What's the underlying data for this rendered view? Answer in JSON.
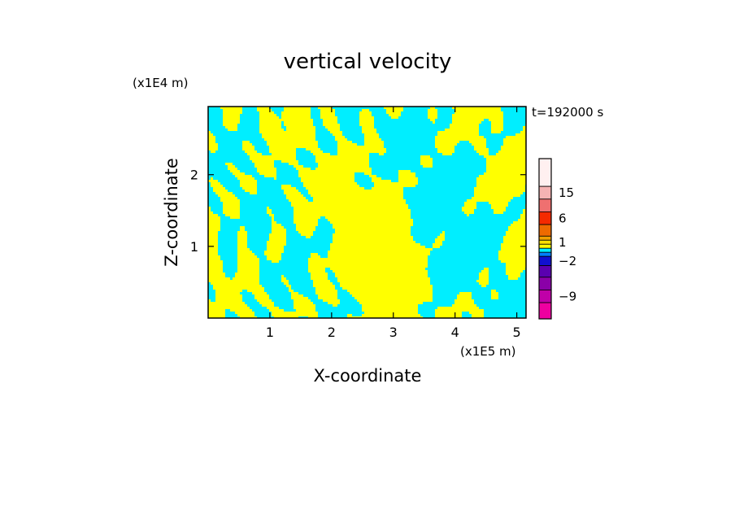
{
  "chart_data": {
    "type": "heatmap",
    "title": "vertical velocity",
    "xlabel": "X-coordinate",
    "ylabel": "Z-coordinate",
    "x_unit": "(x1E5 m)",
    "y_unit": "(x1E4 m)",
    "time_label": "t=192000 s",
    "xlim": [
      0,
      5.15
    ],
    "ylim": [
      0,
      2.95
    ],
    "x_ticks": [
      "1",
      "2",
      "3",
      "4",
      "5"
    ],
    "y_ticks": [
      "1",
      "2"
    ],
    "grid": false,
    "field_colors": {
      "positive": "#ffff00",
      "negative": "#00eeff"
    },
    "colorbar": {
      "tick_labels": [
        "15",
        "6",
        "1",
        "-2",
        "-9"
      ],
      "levels": [
        {
          "value": 24,
          "color": "#fff0f0"
        },
        {
          "value": 15,
          "color": "#f5b3b3"
        },
        {
          "value": 10,
          "color": "#ef7070"
        },
        {
          "value": 6,
          "color": "#f52a00"
        },
        {
          "value": 3,
          "color": "#ee6a00"
        },
        {
          "value": 1.5,
          "color": "#f0a000"
        },
        {
          "value": 1,
          "color": "#ffe000"
        },
        {
          "value": 0.5,
          "color": "#ffff00"
        },
        {
          "value": -0.5,
          "color": "#00eeff"
        },
        {
          "value": -1,
          "color": "#0080ff"
        },
        {
          "value": -2,
          "color": "#1010d0"
        },
        {
          "value": -4,
          "color": "#5a00b0"
        },
        {
          "value": -6,
          "color": "#8a00a8"
        },
        {
          "value": -9,
          "color": "#c000a8"
        },
        {
          "value": -12,
          "color": "#ee00a0"
        }
      ]
    }
  }
}
